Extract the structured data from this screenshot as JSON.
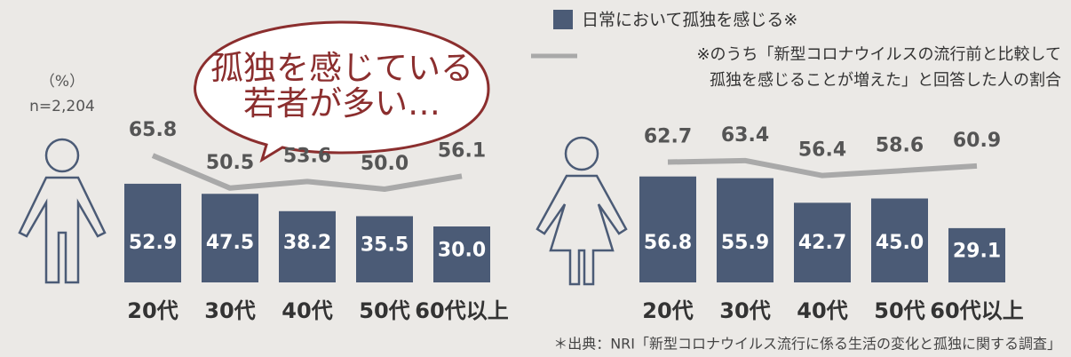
{
  "bubble": "孤独を感じている\n若者が多い…",
  "unit": "（%）",
  "sample": "n=2,204",
  "source": "＊出典：NRI「新型コロナウイルス流行に係る生活の変化と孤独に関する調査」",
  "chart_data": [
    {
      "type": "bar",
      "categories": [
        "20代",
        "30代",
        "40代",
        "50代",
        "60代以上"
      ],
      "series": [
        {
          "name": "日常において孤独を感じる※",
          "color": "#4b5b76",
          "values": [
            52.9,
            47.5,
            38.2,
            35.5,
            30.0
          ],
          "value_labels": [
            "52.9",
            "47.5",
            "38.2",
            "35.5",
            "30.0"
          ]
        },
        {
          "name": "※のうち「新型コロナウイルスの流行前と比較して\n孤独を感じることが増えた」と回答した人の割合",
          "type": "line",
          "color": "#a9a9a9",
          "values": [
            65.8,
            50.5,
            53.6,
            50.0,
            56.1
          ],
          "value_labels": [
            "65.8",
            "50.5",
            "53.6",
            "50.0",
            "56.1"
          ]
        }
      ]
    },
    {
      "type": "bar",
      "categories": [
        "20代",
        "30代",
        "40代",
        "50代",
        "60代以上"
      ],
      "series": [
        {
          "color": "#4b5b76",
          "values": [
            56.8,
            55.9,
            42.7,
            45.0,
            29.1
          ],
          "value_labels": [
            "56.8",
            "55.9",
            "42.7",
            "45.0",
            "29.1"
          ]
        },
        {
          "type": "line",
          "color": "#a9a9a9",
          "values": [
            62.7,
            63.4,
            56.4,
            58.6,
            60.9
          ],
          "value_labels": [
            "62.7",
            "63.4",
            "56.4",
            "58.6",
            "60.9"
          ]
        }
      ]
    }
  ]
}
